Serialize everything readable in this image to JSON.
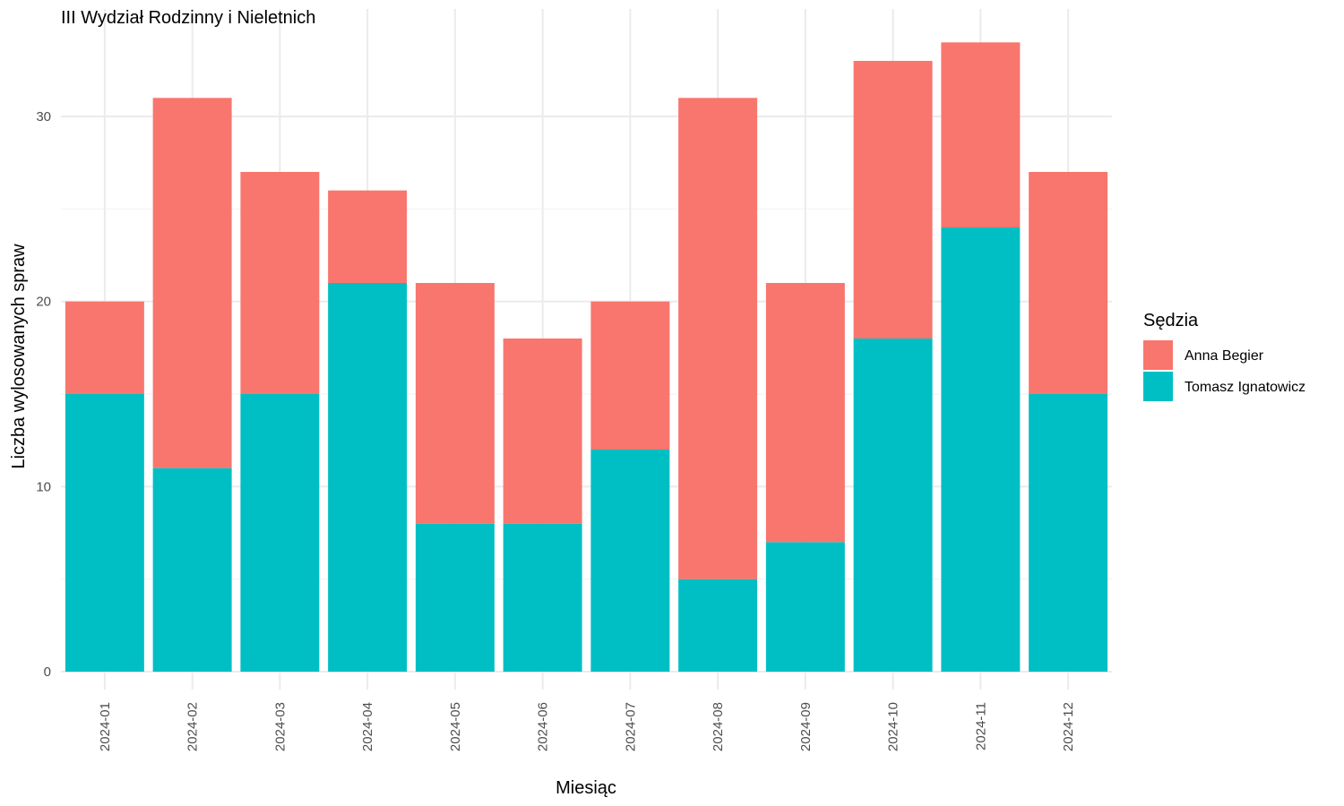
{
  "chart_data": {
    "type": "bar",
    "stacked": true,
    "title": "III Wydział Rodzinny i Nieletnich",
    "xlabel": "Miesiąc",
    "ylabel": "Liczba wylosowanych spraw",
    "categories": [
      "2024-01",
      "2024-02",
      "2024-03",
      "2024-04",
      "2024-05",
      "2024-06",
      "2024-07",
      "2024-08",
      "2024-09",
      "2024-10",
      "2024-11",
      "2024-12"
    ],
    "series": [
      {
        "name": "Tomasz Ignatowicz",
        "color": "#00BFC4",
        "values": [
          15,
          11,
          15,
          21,
          8,
          8,
          12,
          5,
          7,
          18,
          24,
          15
        ]
      },
      {
        "name": "Anna Begier",
        "color": "#F8766D",
        "values": [
          5,
          20,
          12,
          5,
          13,
          10,
          8,
          26,
          14,
          15,
          10,
          12
        ]
      }
    ],
    "ylim": [
      0,
      35
    ],
    "yticks": [
      0,
      10,
      20,
      30
    ],
    "grid": true,
    "legend": {
      "title": "Sędzia",
      "placement": "right",
      "entries": [
        {
          "label": "Anna Begier",
          "color": "#F8766D"
        },
        {
          "label": "Tomasz Ignatowicz",
          "color": "#00BFC4"
        }
      ]
    }
  }
}
